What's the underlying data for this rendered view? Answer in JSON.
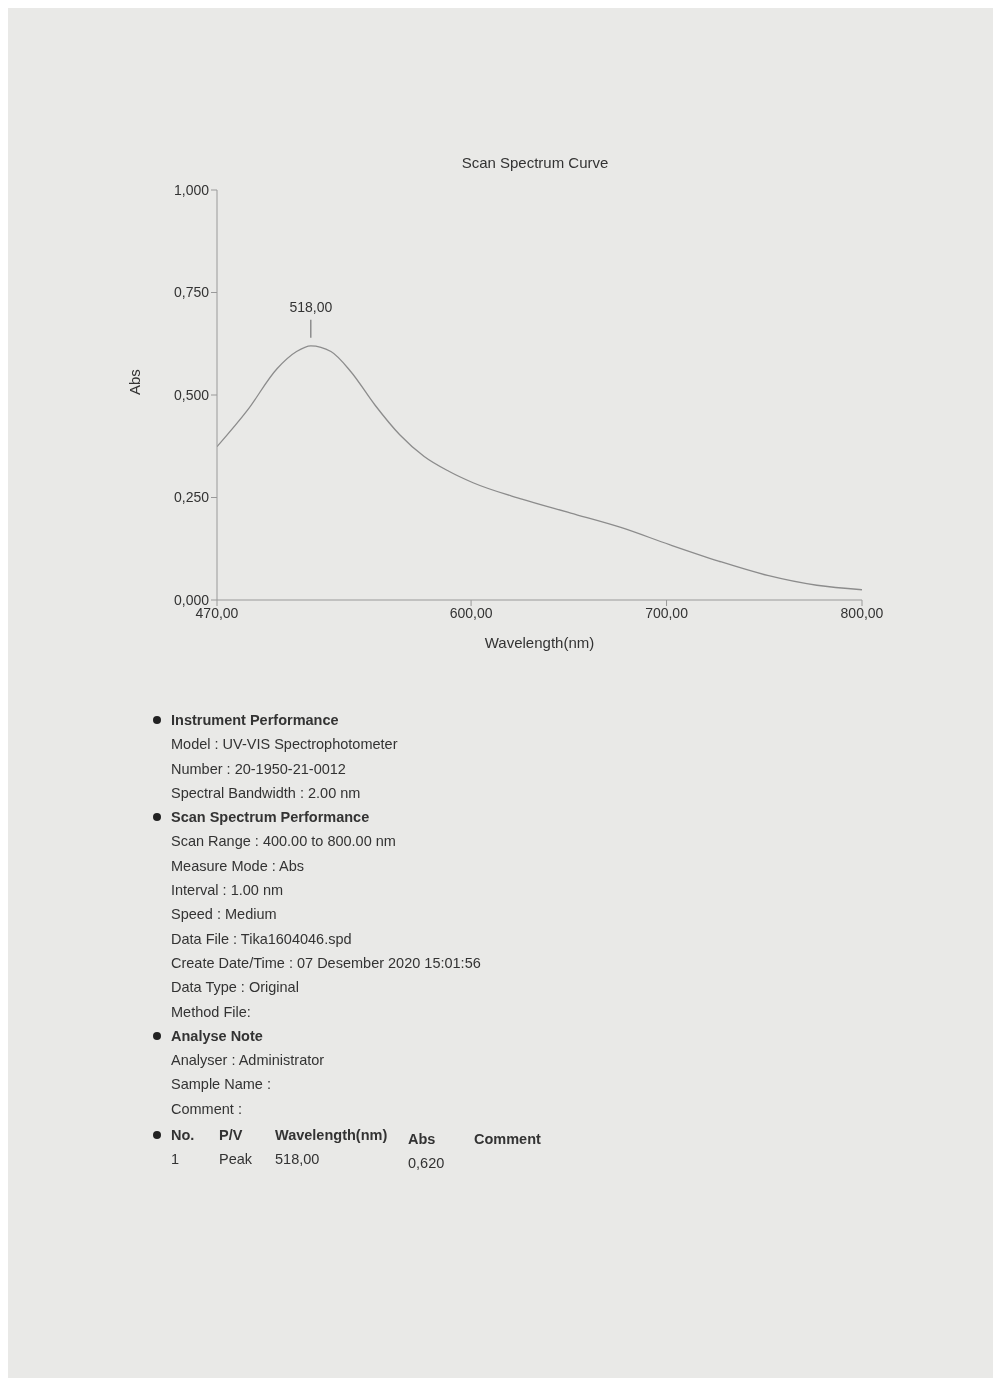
{
  "chart_data": {
    "type": "line",
    "title": "Scan Spectrum Curve",
    "xlabel": "Wavelength(nm)",
    "ylabel": "Abs",
    "x": [
      470,
      485.6,
      500.7,
      510.7,
      518,
      528.3,
      538.3,
      550.9,
      563.5,
      576,
      588.6,
      601,
      626,
      651,
      676.6,
      701.5,
      726.6,
      751.7,
      776.9,
      800
    ],
    "series": [
      {
        "color": "#8c8c8c",
        "values": [
          0.374,
          0.463,
          0.564,
          0.606,
          0.62,
          0.606,
          0.558,
          0.475,
          0.403,
          0.35,
          0.314,
          0.286,
          0.246,
          0.212,
          0.177,
          0.135,
          0.095,
          0.06,
          0.036,
          0.025
        ]
      }
    ],
    "xlim": [
      470,
      800
    ],
    "ylim": [
      0,
      1
    ],
    "xticks": [
      {
        "value": 470,
        "label": "470,00"
      },
      {
        "value": 600,
        "label": "600,00"
      },
      {
        "value": 700,
        "label": "700,00"
      },
      {
        "value": 800,
        "label": "800,00"
      }
    ],
    "yticks": [
      {
        "value": 0,
        "label": "0,000"
      },
      {
        "value": 0.25,
        "label": "0,250"
      },
      {
        "value": 0.5,
        "label": "0,500"
      },
      {
        "value": 0.75,
        "label": "0,750"
      },
      {
        "value": 1,
        "label": "1,000"
      }
    ],
    "grid": false,
    "legend": false,
    "marker": "none",
    "line_style": "solid",
    "annotations": [
      {
        "text": "518,00",
        "x": 518,
        "y": 0.62
      },
      "Instrument Performance",
      "Model : UV-VIS Spectrophotometer",
      "Number : 20-1950-21-0012",
      "Spectral Bandwidth : 2.00 nm",
      "Scan Spectrum Performance",
      "Scan Range : 400.00 to 800.00 nm",
      "Measure Mode : Abs",
      "Interval : 1.00 nm",
      "Speed : Medium",
      "Data File : Tika1604046.spd",
      "Create Date/Time : 07 Desember 2020 15:01:56",
      "Data Type : Original",
      "Method File:",
      "Analyse Note",
      "Analyser : Administrator",
      "Sample Name :",
      "Comment :",
      "No.",
      "P/V",
      "Wavelength(nm)",
      "Abs",
      "Comment",
      "1",
      "Peak",
      "518,00",
      "0,620"
    ]
  }
}
